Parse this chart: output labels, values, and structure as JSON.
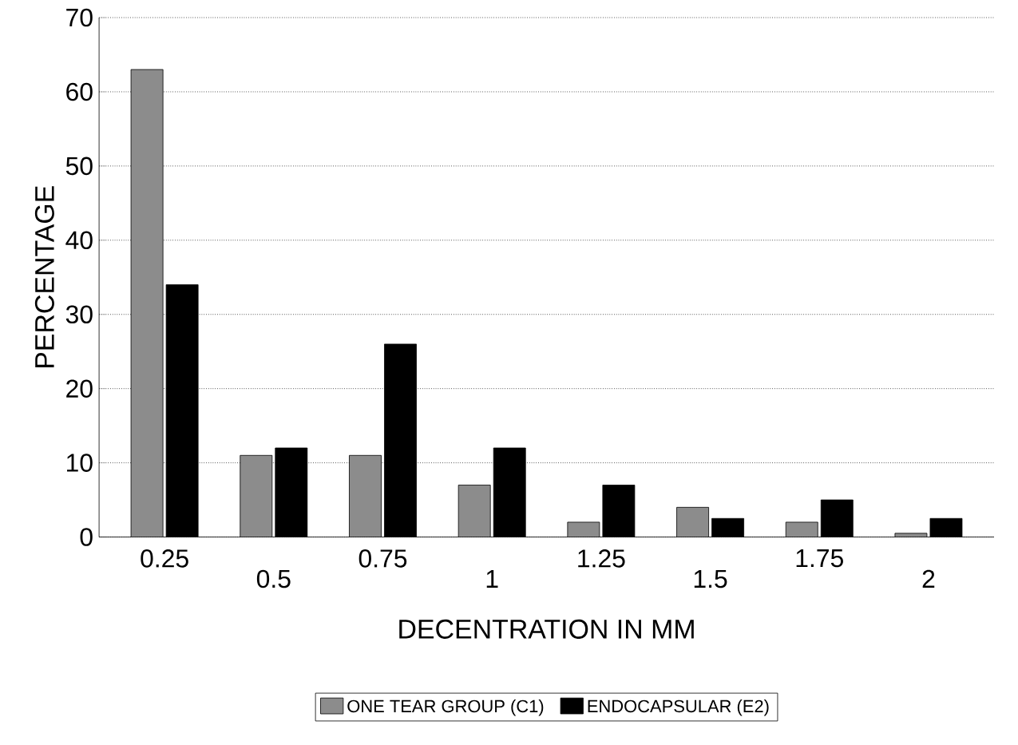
{
  "chart_data": {
    "type": "bar",
    "xlabel": "DECENTRATION IN MM",
    "ylabel": "PERCENTAGE",
    "categories": [
      "0.25",
      "0.5",
      "0.75",
      "1",
      "1.25",
      "1.5",
      "1.75",
      "2"
    ],
    "series": [
      {
        "name": "ONE TEAR GROUP (C1)",
        "color": "#8c8c8c",
        "values": [
          63,
          11,
          11,
          7,
          2,
          4,
          2,
          0.5
        ]
      },
      {
        "name": "ENDOCAPSULAR (E2)",
        "color": "#000000",
        "values": [
          34,
          12,
          26,
          12,
          7,
          2.5,
          5,
          2.5
        ]
      }
    ],
    "ylim": [
      0,
      70
    ],
    "yticks": [
      0,
      10,
      20,
      30,
      40,
      50,
      60,
      70
    ],
    "grid": "y",
    "legend": "bottom"
  }
}
